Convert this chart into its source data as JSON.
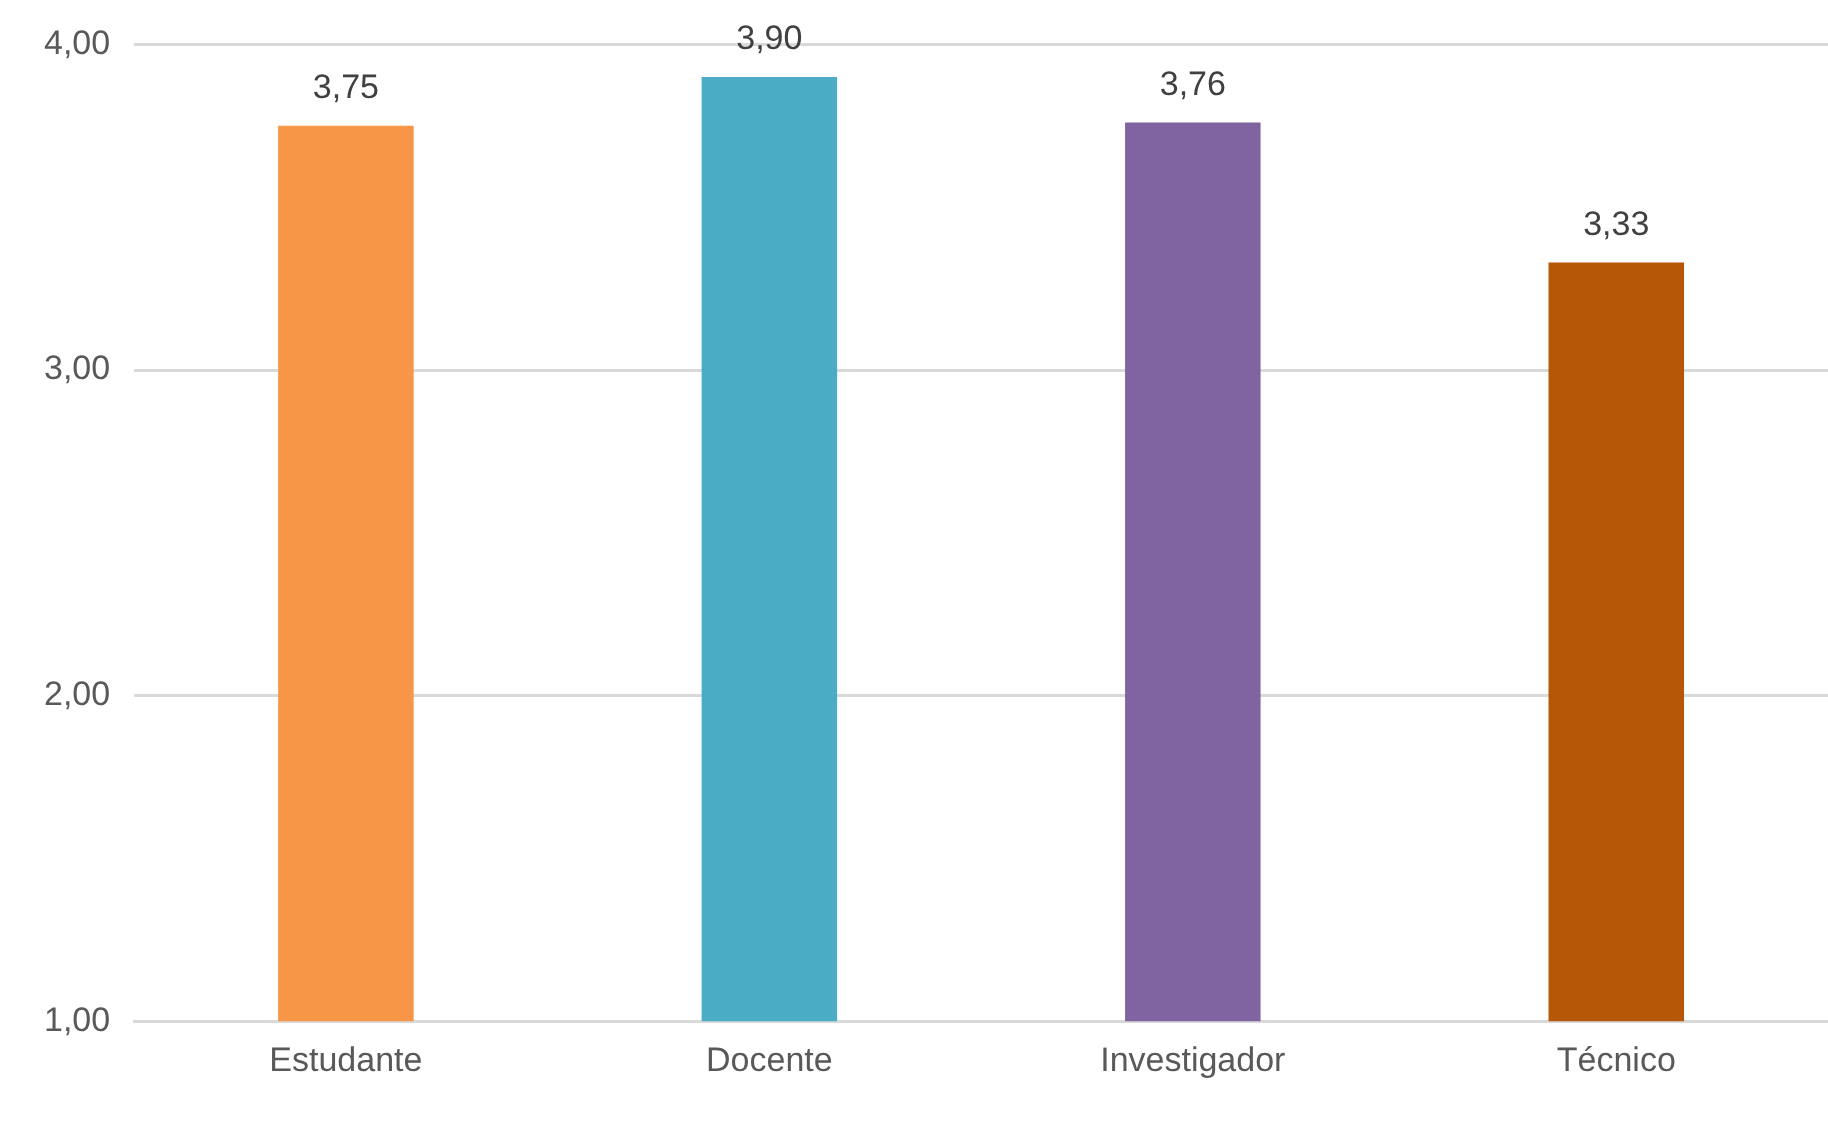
{
  "chart_data": {
    "type": "bar",
    "categories": [
      "Estudante",
      "Docente",
      "Investigador",
      "Técnico"
    ],
    "values": [
      3.75,
      3.9,
      3.76,
      3.33
    ],
    "colors": [
      "#f79646",
      "#4bacc6",
      "#8064a2",
      "#b65708"
    ],
    "value_labels": [
      "3,75",
      "3,90",
      "3,76",
      "3,33"
    ],
    "ylim": [
      1,
      4
    ],
    "yticks": [
      {
        "value": 1,
        "label": "1,00"
      },
      {
        "value": 2,
        "label": "2,00"
      },
      {
        "value": 3,
        "label": "3,00"
      },
      {
        "value": 4,
        "label": "4,00"
      }
    ],
    "grid": "y"
  }
}
